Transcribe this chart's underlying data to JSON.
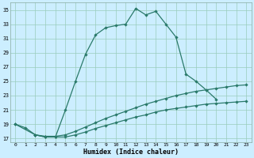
{
  "title": "",
  "xlabel": "Humidex (Indice chaleur)",
  "bg_color": "#cceeff",
  "grid_color": "#99ccbb",
  "line_color": "#2a7a6a",
  "xlim": [
    -0.5,
    23.5
  ],
  "ylim": [
    16.5,
    36.0
  ],
  "yticks": [
    17,
    19,
    21,
    23,
    25,
    27,
    29,
    31,
    33,
    35
  ],
  "xticks": [
    0,
    1,
    2,
    3,
    4,
    5,
    6,
    7,
    8,
    9,
    10,
    11,
    12,
    13,
    14,
    15,
    16,
    17,
    18,
    19,
    20,
    21,
    22,
    23
  ],
  "c1x": [
    0,
    1,
    2,
    3,
    4,
    5,
    6,
    7,
    8,
    9,
    10,
    11,
    12,
    13,
    14,
    15,
    16,
    17,
    18,
    19,
    20
  ],
  "c1y": [
    19.0,
    18.5,
    17.5,
    17.2,
    17.2,
    21.0,
    25.0,
    28.8,
    31.5,
    32.5,
    32.8,
    33.0,
    35.2,
    34.3,
    34.8,
    33.0,
    31.2,
    26.0,
    25.0,
    23.8,
    22.5
  ],
  "c2x": [
    0,
    2,
    3,
    4,
    5,
    6,
    7,
    8,
    9,
    10,
    11,
    12,
    13,
    14,
    15,
    16,
    17,
    18,
    19,
    20,
    21,
    22,
    23
  ],
  "c2y": [
    19.0,
    17.5,
    17.3,
    17.3,
    17.5,
    18.0,
    18.6,
    19.2,
    19.8,
    20.3,
    20.8,
    21.3,
    21.8,
    22.2,
    22.6,
    23.0,
    23.3,
    23.6,
    23.8,
    24.0,
    24.2,
    24.4,
    24.5
  ],
  "c3x": [
    2,
    3,
    4,
    5,
    6,
    7,
    8,
    9,
    10,
    11,
    12,
    13,
    14,
    15,
    16,
    17,
    18,
    19,
    20,
    21,
    22,
    23
  ],
  "c3y": [
    17.5,
    17.2,
    17.2,
    17.2,
    17.5,
    17.9,
    18.4,
    18.8,
    19.2,
    19.6,
    20.0,
    20.3,
    20.7,
    21.0,
    21.2,
    21.4,
    21.6,
    21.8,
    21.9,
    22.0,
    22.1,
    22.2
  ]
}
